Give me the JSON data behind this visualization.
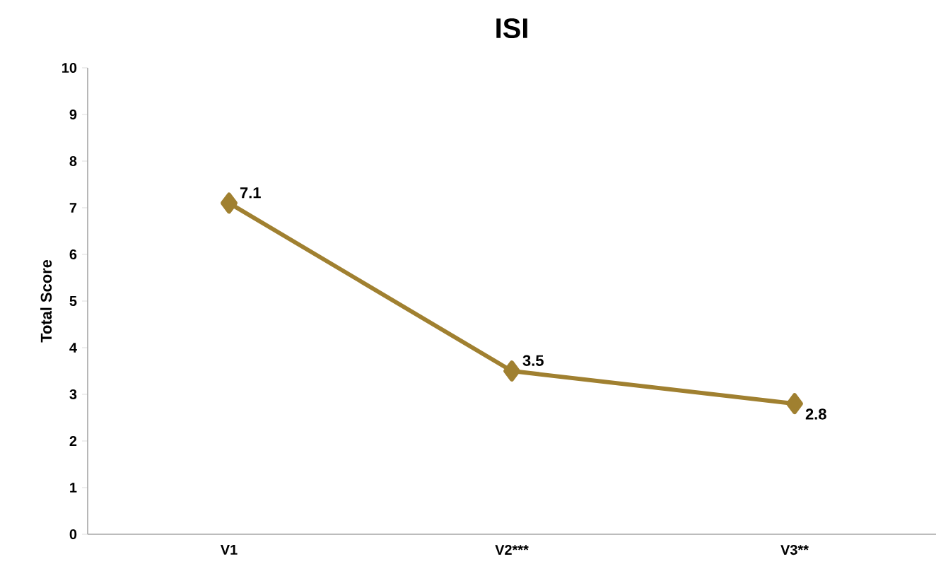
{
  "chart_data": {
    "type": "line",
    "title": "ISI",
    "ylabel": "Total Score",
    "categories": [
      "V1",
      "V2***",
      "V3**"
    ],
    "series": [
      {
        "color": "#a08030",
        "values": [
          7.1,
          3.5,
          2.8
        ]
      }
    ],
    "ylim": [
      0,
      10
    ],
    "yticks": [
      0,
      1,
      2,
      3,
      4,
      5,
      6,
      7,
      8,
      9,
      10
    ],
    "marker": "diamond",
    "line_style": "solid",
    "data_labels": true
  }
}
